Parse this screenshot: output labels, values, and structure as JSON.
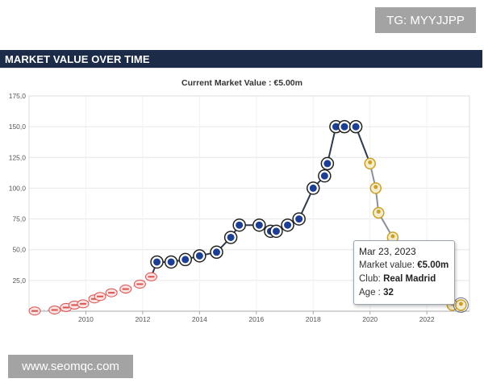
{
  "watermark_top": "TG: MYYJJPP",
  "watermark_bottom": "www.seomqc.com",
  "section_title": "MARKET VALUE OVER TIME",
  "colors": {
    "header_bg": "#1b2b48",
    "line": "#2d3a4d",
    "chelsea_badge": "#1c3f94",
    "real_madrid_badge": "#c9a227",
    "early_club_badge": "#d9534f"
  },
  "tooltip": {
    "date": "Mar 23, 2023",
    "value_label": "Market value:",
    "value": "€5.00m",
    "club_label": "Club:",
    "club": "Real Madrid",
    "age_label": "Age :",
    "age": "32"
  },
  "chart_data": {
    "type": "line",
    "title": "Current Market Value : €5.00m",
    "xlabel": "",
    "ylabel": "",
    "x_ticks": [
      "2010",
      "2012",
      "2014",
      "2016",
      "2018",
      "2020",
      "2022"
    ],
    "y_ticks": [
      "25,0",
      "50,0",
      "75,0",
      "100,0",
      "125,0",
      "150,0",
      "175,0"
    ],
    "xlim": [
      2008.0,
      2023.5
    ],
    "ylim": [
      0,
      175
    ],
    "grid": true,
    "series": [
      {
        "points": [
          {
            "x": 2008.2,
            "y": 0.2,
            "club": "early"
          },
          {
            "x": 2008.9,
            "y": 1.0,
            "club": "early"
          },
          {
            "x": 2009.3,
            "y": 3.0,
            "club": "early"
          },
          {
            "x": 2009.6,
            "y": 5.0,
            "club": "early"
          },
          {
            "x": 2009.9,
            "y": 6.0,
            "club": "early"
          },
          {
            "x": 2010.3,
            "y": 10.0,
            "club": "early"
          },
          {
            "x": 2010.5,
            "y": 12.0,
            "club": "early"
          },
          {
            "x": 2010.9,
            "y": 15.0,
            "club": "early"
          },
          {
            "x": 2011.4,
            "y": 18.0,
            "club": "early"
          },
          {
            "x": 2011.9,
            "y": 22.0,
            "club": "early"
          },
          {
            "x": 2012.3,
            "y": 28.0,
            "club": "early"
          },
          {
            "x": 2012.5,
            "y": 40.0,
            "club": "chelsea"
          },
          {
            "x": 2013.0,
            "y": 40.0,
            "club": "chelsea"
          },
          {
            "x": 2013.5,
            "y": 42.0,
            "club": "chelsea"
          },
          {
            "x": 2014.0,
            "y": 45.0,
            "club": "chelsea"
          },
          {
            "x": 2014.6,
            "y": 48.0,
            "club": "chelsea"
          },
          {
            "x": 2015.1,
            "y": 60.0,
            "club": "chelsea"
          },
          {
            "x": 2015.4,
            "y": 70.0,
            "club": "chelsea"
          },
          {
            "x": 2016.1,
            "y": 70.0,
            "club": "chelsea"
          },
          {
            "x": 2016.5,
            "y": 65.0,
            "club": "chelsea"
          },
          {
            "x": 2016.7,
            "y": 65.0,
            "club": "chelsea"
          },
          {
            "x": 2017.1,
            "y": 70.0,
            "club": "chelsea"
          },
          {
            "x": 2017.5,
            "y": 75.0,
            "club": "chelsea"
          },
          {
            "x": 2018.0,
            "y": 100.0,
            "club": "chelsea"
          },
          {
            "x": 2018.4,
            "y": 110.0,
            "club": "chelsea"
          },
          {
            "x": 2018.5,
            "y": 120.0,
            "club": "chelsea"
          },
          {
            "x": 2018.8,
            "y": 150.0,
            "club": "chelsea"
          },
          {
            "x": 2019.1,
            "y": 150.0,
            "club": "chelsea"
          },
          {
            "x": 2019.5,
            "y": 150.0,
            "club": "chelsea"
          },
          {
            "x": 2020.0,
            "y": 120.0,
            "club": "real_madrid"
          },
          {
            "x": 2020.2,
            "y": 100.0,
            "club": "real_madrid"
          },
          {
            "x": 2020.3,
            "y": 80.0,
            "club": "real_madrid"
          },
          {
            "x": 2020.8,
            "y": 60.0,
            "club": "real_madrid"
          },
          {
            "x": 2021.5,
            "y": 30.0,
            "club": "real_madrid"
          },
          {
            "x": 2022.1,
            "y": 20.0,
            "club": "real_madrid"
          },
          {
            "x": 2022.9,
            "y": 5.0,
            "club": "real_madrid"
          },
          {
            "x": 2023.2,
            "y": 5.0,
            "club": "real_madrid"
          }
        ]
      }
    ],
    "highlight_index": 36
  }
}
